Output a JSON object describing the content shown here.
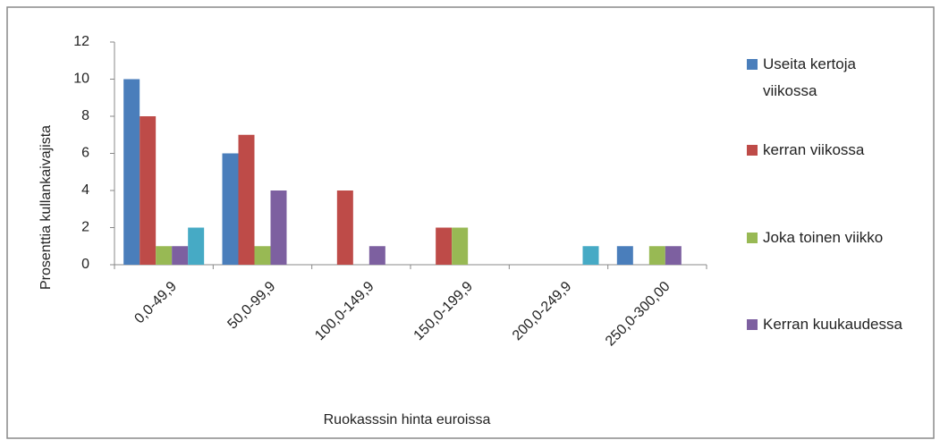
{
  "chart_data": {
    "type": "bar",
    "x_label": "Ruokasssin hinta euroissa",
    "y_label": "Prosenttia kullankaivajista",
    "categories": [
      "0,0-49,9",
      "50,0-99,9",
      "100,0-149,9",
      "150,0-199,9",
      "200,0-249,9",
      "250,0-300,00"
    ],
    "series": [
      {
        "name": "Useita kertoja viikossa",
        "color": "#4a7ebb",
        "values": [
          10,
          6,
          0,
          0,
          0,
          1
        ]
      },
      {
        "name": "kerran viikossa",
        "color": "#be4b48",
        "values": [
          8,
          7,
          4,
          2,
          0,
          0
        ]
      },
      {
        "name": "Joka toinen viikko",
        "color": "#98b954",
        "values": [
          1,
          1,
          0,
          2,
          0,
          1
        ]
      },
      {
        "name": "Kerran kuukaudessa",
        "color": "#7d60a0",
        "values": [
          1,
          4,
          1,
          0,
          0,
          1
        ]
      },
      {
        "color": "#46aac5",
        "values": [
          2,
          0,
          0,
          0,
          1,
          0
        ]
      }
    ],
    "ylim": [
      0,
      12
    ],
    "yticks": [
      0,
      2,
      4,
      6,
      8,
      10,
      12
    ],
    "grid": false
  }
}
